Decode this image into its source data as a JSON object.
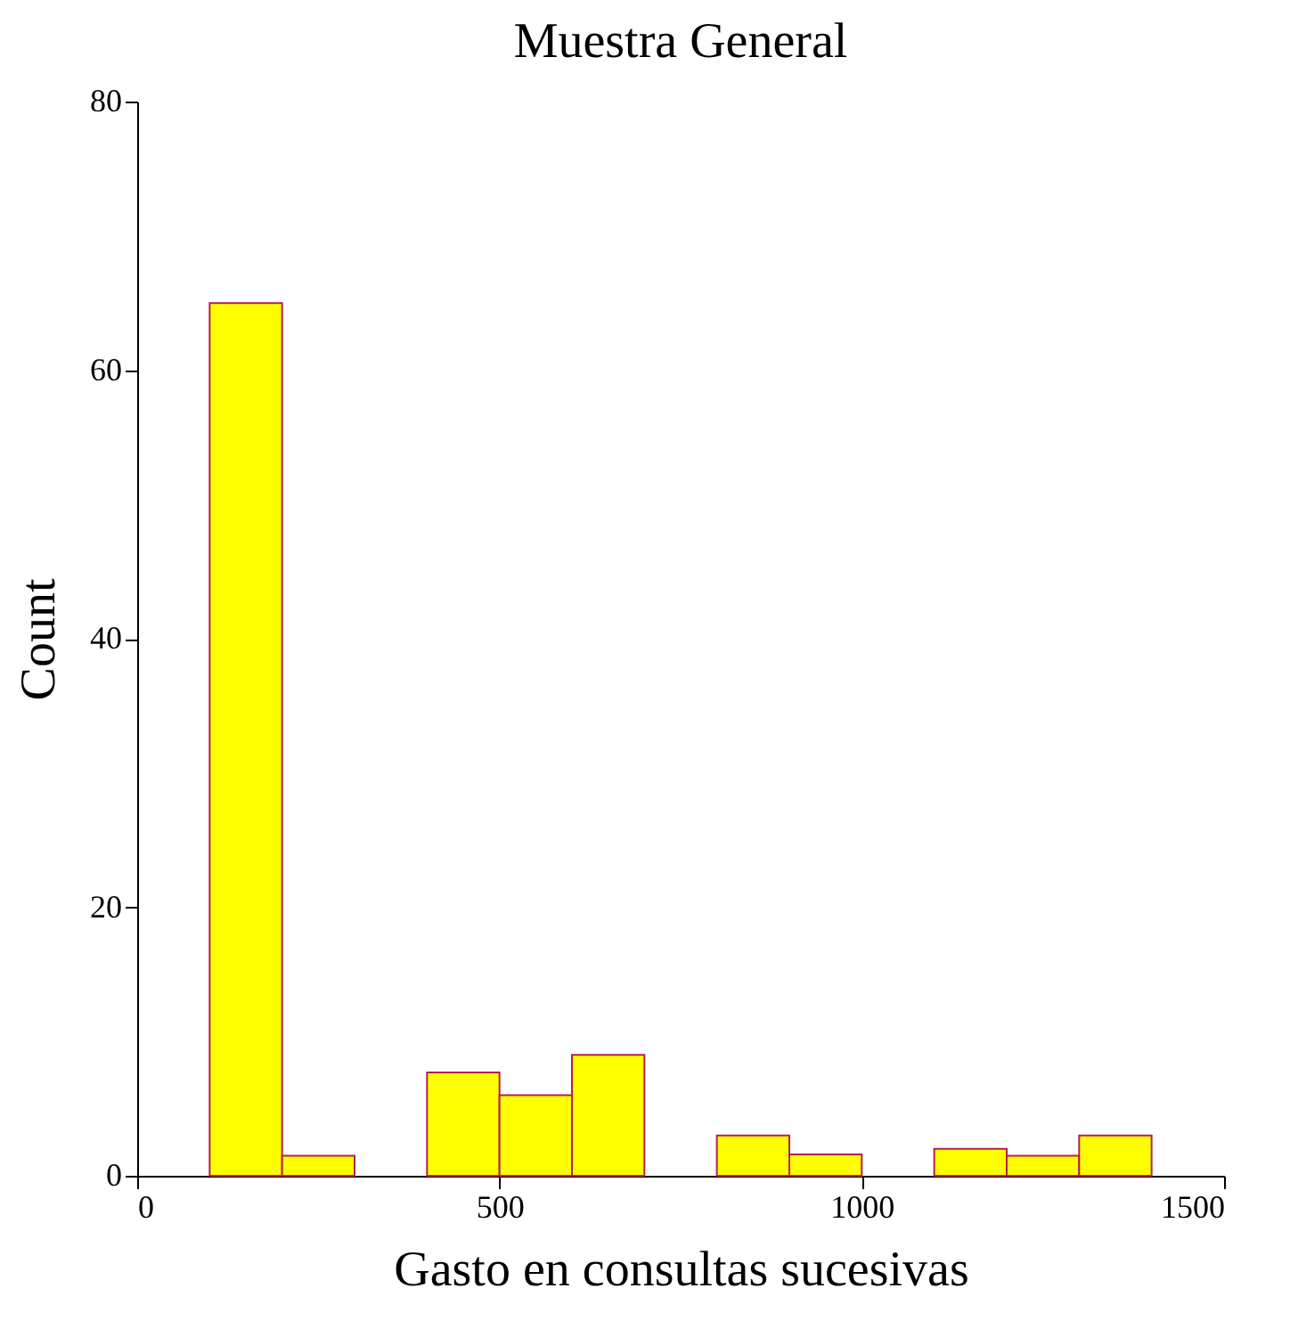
{
  "chart_data": {
    "type": "histogram",
    "title": "Muestra General",
    "xlabel": "Gasto en consultas sucesivas",
    "ylabel": "Count",
    "bins": [
      100,
      200,
      300,
      400,
      500,
      600,
      700,
      800,
      900,
      1000,
      1100,
      1200,
      1300,
      1400
    ],
    "values": [
      65,
      1.5,
      0,
      7.7,
      6,
      9,
      0,
      3,
      1.6,
      0,
      2,
      1.5,
      3
    ],
    "color": "#ffff00",
    "xlim": [
      0,
      1500
    ],
    "xticks": [
      0,
      500,
      1000,
      1500
    ],
    "ylim": [
      0,
      80
    ],
    "yticks": [
      0,
      20,
      40,
      60,
      80
    ],
    "grid": false
  }
}
